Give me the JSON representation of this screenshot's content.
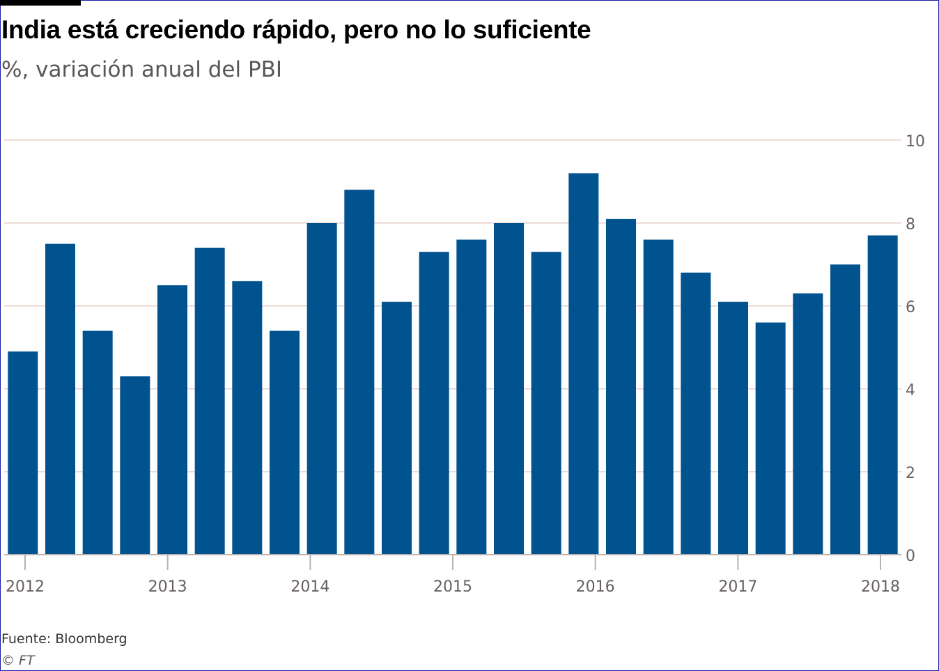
{
  "title": "India está creciendo rápido, pero no lo suficiente",
  "subtitle": "%, variación anual del PBI",
  "source": "Fuente: Bloomberg",
  "copyright": "© FT",
  "colors": {
    "bar": "#00538f",
    "grid": "#eddcd6",
    "axis": "#b8b2b0",
    "tick_text": "#66605e"
  },
  "chart_data": {
    "type": "bar",
    "x_tick_labels": [
      "2012",
      "2013",
      "2014",
      "2015",
      "2016",
      "2017",
      "2018"
    ],
    "y_tick_labels": [
      "0",
      "2",
      "4",
      "6",
      "8",
      "10"
    ],
    "ylim": [
      0,
      10
    ],
    "grid": true,
    "y_axis_side": "right",
    "series": [
      {
        "values": [
          4.9,
          7.5,
          5.4,
          4.3,
          6.5,
          7.4,
          6.6,
          5.4,
          8.0,
          8.8,
          6.1,
          7.3,
          7.6,
          8.0,
          7.3,
          9.2,
          8.1,
          7.6,
          6.8,
          6.1,
          5.6,
          6.3,
          7.0,
          7.7
        ]
      }
    ]
  }
}
